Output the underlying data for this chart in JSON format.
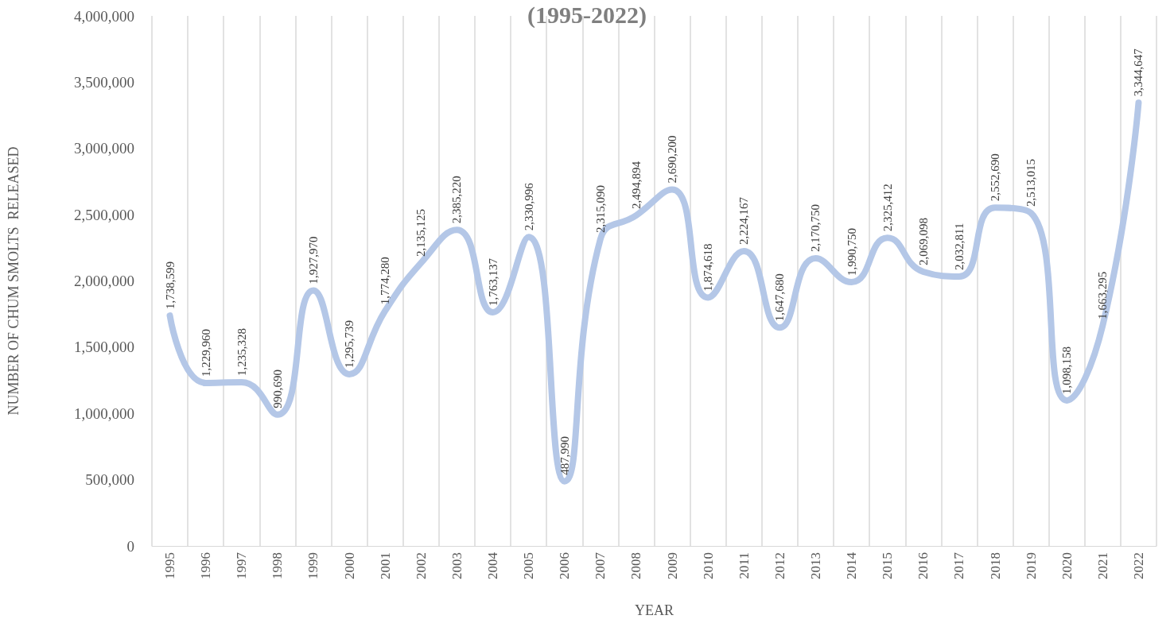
{
  "chart_data": {
    "type": "line",
    "title": "(1995-2022)",
    "xlabel": "YEAR",
    "ylabel": "NUMBER OF CHUM SMOLTS  RELEASED",
    "categories": [
      "1995",
      "1996",
      "1997",
      "1998",
      "1999",
      "2000",
      "2001",
      "2002",
      "2003",
      "2004",
      "2005",
      "2006",
      "2007",
      "2008",
      "2009",
      "2010",
      "2011",
      "2012",
      "2013",
      "2014",
      "2015",
      "2016",
      "2017",
      "2018",
      "2019",
      "2020",
      "2021",
      "2022"
    ],
    "series": [
      {
        "color": "#b4c7e7",
        "values": [
          1738599,
          1229960,
          1235328,
          990690,
          1927970,
          1295739,
          1774280,
          2135125,
          2385220,
          1763137,
          2330996,
          487990,
          2315090,
          2494894,
          2690200,
          1874618,
          2224167,
          1647680,
          2170750,
          1990750,
          2325412,
          2069098,
          2032811,
          2552690,
          2513015,
          1098158,
          1663295,
          3344647
        ],
        "value_labels": [
          "1,738,599",
          "1,229,960",
          "1,235,328",
          "990,690",
          "1,927,970",
          "1,295,739",
          "1,774,280",
          "2,135,125",
          "2,385,220",
          "1,763,137",
          "2,330,996",
          "487,990",
          "2,315,090",
          "2,494,894",
          "2,690,200",
          "1,874,618",
          "2,224,167",
          "1,647,680",
          "2,170,750",
          "1,990,750",
          "2,325,412",
          "2,069,098",
          "2,032,811",
          "2,552,690",
          "2,513,015",
          "1,098,158",
          "1,663,295",
          "3,344,647"
        ]
      }
    ],
    "ylim": [
      0,
      4000000
    ],
    "yticks": [
      0,
      {
        "value": 500000,
        "label": "500,000"
      },
      {
        "value": 1000000,
        "label": "1,000,000"
      },
      {
        "value": 1500000,
        "label": "1,500,000"
      },
      {
        "value": 2000000,
        "label": "2,000,000"
      },
      {
        "value": 2500000,
        "label": "2,500,000"
      },
      {
        "value": 3000000,
        "label": "3,000,000"
      },
      {
        "value": 3500000,
        "label": "3,500,000"
      },
      {
        "value": 4000000,
        "label": "4,000,000"
      }
    ],
    "grid": "x",
    "marker": "none",
    "line_style": "solid"
  }
}
